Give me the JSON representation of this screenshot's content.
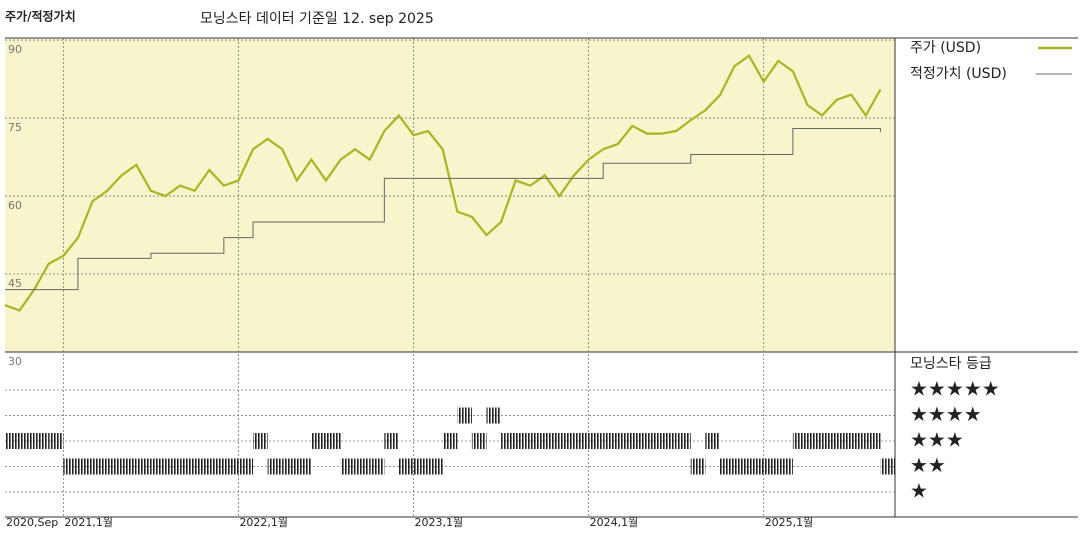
{
  "chart_data": {
    "type": "line",
    "title": "주가/적정가치",
    "subtitle": "모닝스타 데이터 기준일 12. sep 2025",
    "x": [
      "2020-09",
      "2020-10",
      "2020-11",
      "2020-12",
      "2021-01",
      "2021-02",
      "2021-03",
      "2021-04",
      "2021-05",
      "2021-06",
      "2021-07",
      "2021-08",
      "2021-09",
      "2021-10",
      "2021-11",
      "2021-12",
      "2022-01",
      "2022-02",
      "2022-03",
      "2022-04",
      "2022-05",
      "2022-06",
      "2022-07",
      "2022-08",
      "2022-09",
      "2022-10",
      "2022-11",
      "2022-12",
      "2023-01",
      "2023-02",
      "2023-03",
      "2023-04",
      "2023-05",
      "2023-06",
      "2023-07",
      "2023-08",
      "2023-09",
      "2023-10",
      "2023-11",
      "2023-12",
      "2024-01",
      "2024-02",
      "2024-03",
      "2024-04",
      "2024-05",
      "2024-06",
      "2024-07",
      "2024-08",
      "2024-09",
      "2024-10",
      "2024-11",
      "2024-12",
      "2025-01",
      "2025-02",
      "2025-03",
      "2025-04",
      "2025-05",
      "2025-06",
      "2025-07",
      "2025-08",
      "2025-09"
    ],
    "series": [
      {
        "name": "주가 (USD)",
        "color": "#a9b523",
        "values": [
          39,
          38,
          42,
          47,
          48.5,
          52,
          59,
          61,
          64,
          66,
          61,
          60,
          62,
          61,
          65,
          62,
          63,
          69,
          71,
          69,
          63,
          67,
          63,
          67,
          69,
          67,
          72.5,
          75.5,
          71.7,
          72.5,
          69,
          57,
          56,
          52.5,
          55,
          63,
          62,
          64,
          60,
          64,
          67,
          69,
          70,
          73.5,
          72,
          72,
          72.5,
          74.6,
          76.5,
          79.4,
          85,
          87,
          82,
          86,
          84,
          77.5,
          75.5,
          78.5,
          79.5,
          75.5,
          80.5
        ]
      },
      {
        "name": "적정가치 (USD)",
        "color": "#666666",
        "values": [
          42,
          42,
          42,
          42,
          42,
          48,
          48,
          48,
          48,
          48,
          49,
          49,
          49,
          49,
          49,
          52,
          52,
          55,
          55,
          55,
          55,
          55,
          55,
          55,
          55,
          55,
          63.4,
          63.4,
          63.4,
          63.4,
          63.4,
          63.4,
          63.4,
          63.4,
          63.4,
          63.4,
          63.4,
          63.4,
          63.4,
          63.4,
          63.4,
          66.3,
          66.3,
          66.3,
          66.3,
          66.3,
          66.3,
          68,
          68,
          68,
          68,
          68,
          68,
          68,
          73,
          73,
          73,
          73,
          73,
          73,
          72.3
        ]
      }
    ],
    "xlim": [
      "2020-09",
      "2025-10"
    ],
    "xticks": [
      {
        "value": "2020-09",
        "label": "2020,Sep"
      },
      {
        "value": "2021-01",
        "label": "2021,1월"
      },
      {
        "value": "2022-01",
        "label": "2022,1월"
      },
      {
        "value": "2023-01",
        "label": "2023,1월"
      },
      {
        "value": "2024-01",
        "label": "2024,1월"
      },
      {
        "value": "2025-01",
        "label": "2025,1월"
      }
    ],
    "ylim": [
      30,
      90.4
    ],
    "yticks": [
      90,
      75,
      60,
      45,
      30
    ],
    "grid": true,
    "background": "#f8f4cc",
    "rating_title": "모닝스타 등급",
    "rating_color": "#222222",
    "ratings": [
      3,
      3,
      3,
      3,
      2,
      2,
      2,
      2,
      2,
      2,
      2,
      2,
      2,
      2,
      2,
      2,
      2,
      3,
      2,
      2,
      2,
      3,
      3,
      2,
      2,
      2,
      3,
      2,
      2,
      2,
      3,
      4,
      3,
      4,
      3,
      3,
      3,
      3,
      3,
      3,
      3,
      3,
      3,
      3,
      3,
      3,
      3,
      2,
      3,
      2,
      2,
      2,
      2,
      2,
      3,
      3,
      3,
      3,
      3,
      3,
      2
    ],
    "rating_ticks": [
      {
        "value": 5,
        "label": "★★★★★"
      },
      {
        "value": 4,
        "label": "★★★★"
      },
      {
        "value": 3,
        "label": "★★★"
      },
      {
        "value": 2,
        "label": "★★"
      },
      {
        "value": 1,
        "label": "★"
      }
    ]
  }
}
